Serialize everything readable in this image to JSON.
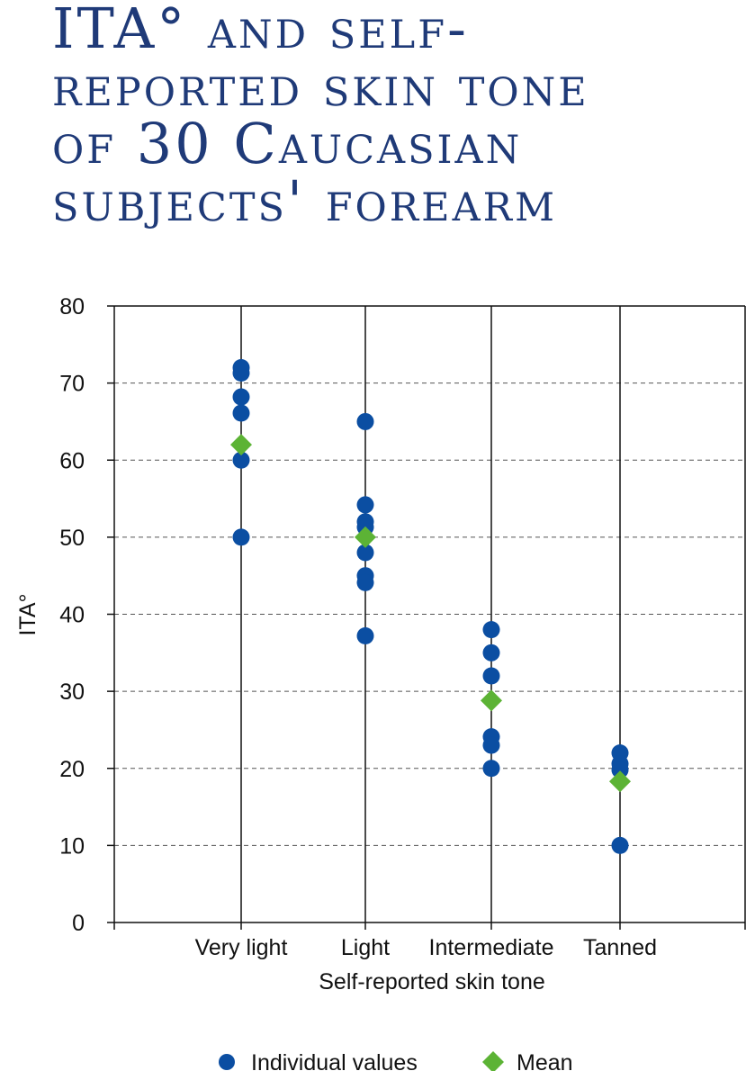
{
  "title": "ITA° and self-reported skin tone of 30 Caucasian subjects' forearm",
  "title_lines": [
    "ITA° and self-",
    "reported skin tone",
    "of 30 Caucasian",
    "subjects' forearm"
  ],
  "colors": {
    "title": "#1f3a78",
    "individual": "#0b4ea2",
    "mean": "#5cb335",
    "grid": "#555555"
  },
  "chart_data": {
    "type": "scatter",
    "xlabel": "Self-reported skin tone",
    "ylabel": "ITA°",
    "ylim": [
      0,
      80
    ],
    "yticks": [
      0,
      10,
      20,
      30,
      40,
      50,
      60,
      70,
      80
    ],
    "categories": [
      "Very light",
      "Light",
      "Intermediate",
      "Tanned"
    ],
    "grid": "horizontal dashed at each y tick",
    "legend_position": "bottom-center",
    "series": [
      {
        "name": "Individual values",
        "marker": "circle",
        "values": [
          [
            72,
            71.3,
            68.2,
            66.1,
            60,
            50
          ],
          [
            65,
            54.2,
            52,
            51.3,
            48,
            45,
            44.1,
            37.2
          ],
          [
            38,
            35,
            32,
            24.1,
            23,
            20
          ],
          [
            22,
            20.6,
            19.8,
            10
          ]
        ]
      },
      {
        "name": "Mean",
        "marker": "diamond",
        "values": [
          62,
          50,
          28.8,
          18.3
        ]
      }
    ]
  }
}
